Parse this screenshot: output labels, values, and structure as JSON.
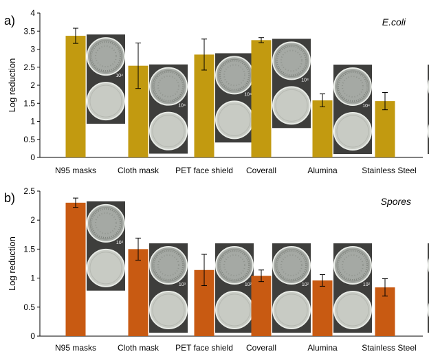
{
  "chart_data": [
    {
      "type": "bar",
      "panel_label": "a)",
      "corner_label": "E.coli",
      "ylabel": "Log reduction",
      "ylim": [
        0,
        4
      ],
      "yticks": [
        "0",
        "0.5",
        "1",
        "1.5",
        "2",
        "2.5",
        "3",
        "3.5",
        "4"
      ],
      "bar_color": "#c29a10",
      "categories": [
        "N95 masks",
        "Cloth mask",
        "PET face shield",
        "Coverall",
        "Alumina",
        "Stainless Steel"
      ],
      "values": [
        3.37,
        2.54,
        2.85,
        3.25,
        1.58,
        1.56
      ],
      "errors": [
        0.21,
        0.63,
        0.43,
        0.07,
        0.18,
        0.24
      ],
      "inset_labels": [
        "10⁴",
        "10⁴",
        "10⁴",
        "10⁴",
        "10⁴",
        "10⁴"
      ]
    },
    {
      "type": "bar",
      "panel_label": "b)",
      "corner_label": "Spores",
      "ylabel": "Log reduction",
      "ylim": [
        0,
        2.5
      ],
      "yticks": [
        "0",
        "0.5",
        "1",
        "1.5",
        "2",
        "2.5"
      ],
      "bar_color": "#c85a12",
      "categories": [
        "N95 masks",
        "Cloth mask",
        "PET face shield",
        "Coverall",
        "Alumina",
        "Stainless Steel"
      ],
      "values": [
        2.3,
        1.5,
        1.14,
        1.04,
        0.96,
        0.84
      ],
      "errors": [
        0.08,
        0.19,
        0.27,
        0.1,
        0.1,
        0.15
      ],
      "inset_labels": [
        "10³",
        "10³",
        "10²",
        "10²",
        "10²",
        "10²"
      ]
    }
  ]
}
